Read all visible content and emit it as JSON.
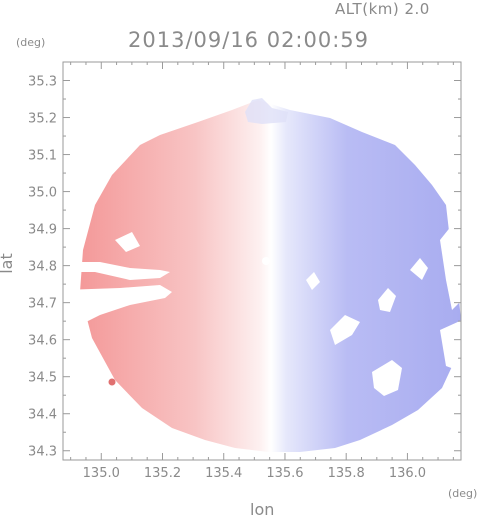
{
  "header": {
    "altitude_label": "ALT(km) 2.0",
    "timestamp": "2013/09/16 02:00:59"
  },
  "chart_data": {
    "type": "heatmap",
    "title": "2013/09/16 02:00:59",
    "xlabel": "lon",
    "ylabel": "lat",
    "xunit": "(deg)",
    "yunit": "(deg)",
    "xlim": [
      134.875,
      136.175
    ],
    "ylim": [
      34.275,
      35.35
    ],
    "xticks": [
      "135.0",
      "135.2",
      "135.4",
      "135.6",
      "135.8",
      "136.0"
    ],
    "yticks": [
      "34.3",
      "34.4",
      "34.5",
      "34.6",
      "34.7",
      "34.8",
      "34.9",
      "35.0",
      "35.1",
      "35.2",
      "35.3"
    ],
    "radar_center": {
      "lon": 135.52,
      "lat": 34.8
    },
    "colors": {
      "approaching": "#f4a7a7",
      "receding": "#a4a8f0",
      "near_zero": "#ffffff"
    },
    "grid": false,
    "legend": "none"
  }
}
